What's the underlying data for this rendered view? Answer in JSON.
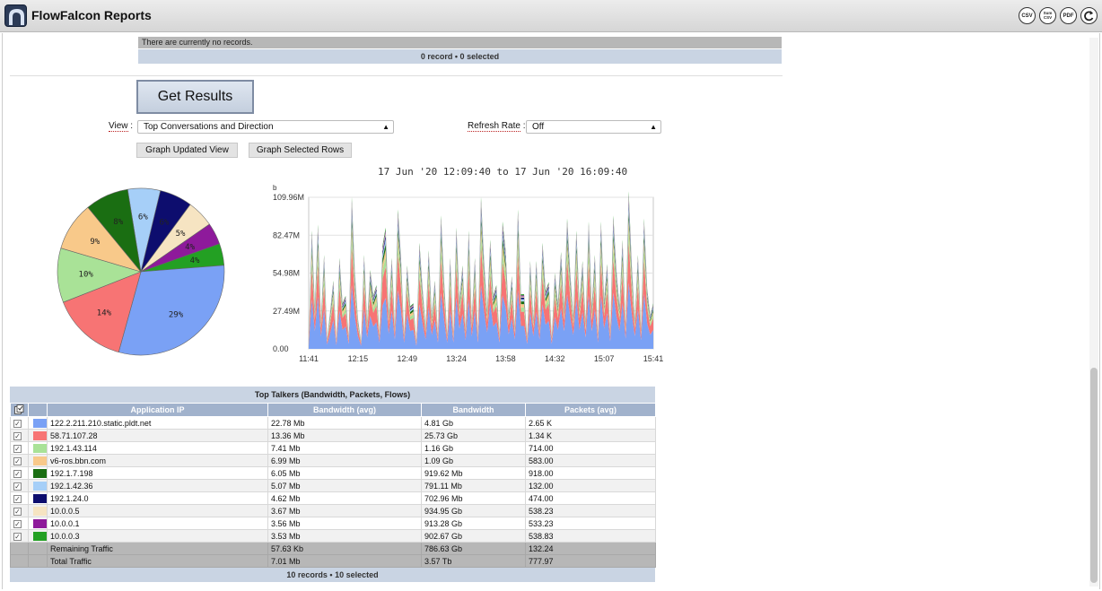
{
  "app": {
    "title": "FlowFalcon Reports",
    "toolbar_icons": [
      "CSV",
      "Sum CSV",
      "PDF",
      "back"
    ]
  },
  "records_panel": {
    "message": "There are currently no records.",
    "footer": "0 record • 0 selected"
  },
  "controls": {
    "get_results_label": "Get Results",
    "view_label": "View",
    "view_value": "Top Conversations and Direction",
    "refresh_label": "Refresh Rate",
    "refresh_value": "Off",
    "graph_updated_label": "Graph Updated View",
    "graph_selected_label": "Graph Selected Rows"
  },
  "chart_data": [
    {
      "type": "pie",
      "labels": [
        "122.2.211.210.static.pldt.net",
        "58.71.107.28",
        "192.1.43.114",
        "v6-ros.bbn.com",
        "192.1.7.198",
        "192.1.42.36",
        "192.1.24.0",
        "10.0.0.5",
        "10.0.0.1",
        "10.0.0.3"
      ],
      "values": [
        29,
        14,
        10,
        9,
        8,
        6,
        6,
        5,
        4,
        4
      ],
      "value_labels": [
        "29%",
        "14%",
        "10%",
        "9%",
        "8%",
        "6%",
        "6%",
        "5%",
        "4%",
        "4%"
      ],
      "colors": [
        "#7aa1f5",
        "#f77474",
        "#a9e297",
        "#f8c98a",
        "#1a6e12",
        "#a6cff8",
        "#0d0d6e",
        "#f6e4c2",
        "#8e1a9b",
        "#23a023"
      ]
    },
    {
      "type": "area",
      "stacked": true,
      "title": "17 Jun '20 12:09:40 to 17 Jun '20 16:09:40",
      "y_unit": "b",
      "yticks": [
        "0.00",
        "27.49M",
        "54.98M",
        "82.47M",
        "109.96M"
      ],
      "ylim": [
        0,
        109960000
      ],
      "xticks": [
        "11:41",
        "12:15",
        "12:49",
        "13:24",
        "13:58",
        "14:32",
        "15:07",
        "15:41"
      ],
      "series_colors": [
        "#7aa1f5",
        "#f77474",
        "#a9e297",
        "#f8c98a",
        "#1a6e12",
        "#a6cff8",
        "#0d0d6e",
        "#f6e4c2",
        "#8e1a9b",
        "#23a023"
      ],
      "totals": [
        5,
        78,
        28,
        82,
        20,
        62,
        7,
        25,
        45,
        6,
        60,
        30,
        35,
        8,
        100,
        50,
        20,
        5,
        62,
        18,
        52,
        35,
        42,
        10,
        68,
        80,
        24,
        60,
        15,
        92,
        60,
        10,
        55,
        28,
        30,
        5,
        70,
        40,
        15,
        65,
        22,
        45,
        10,
        88,
        45,
        10,
        60,
        10,
        80,
        32,
        55,
        14,
        78,
        20,
        60,
        10,
        100,
        58,
        26,
        72,
        35,
        42,
        10,
        84,
        65,
        23,
        48,
        15,
        92,
        36,
        36,
        8,
        58,
        20,
        58,
        15,
        70,
        38,
        44,
        8,
        50,
        30,
        64,
        28,
        86,
        50,
        22,
        78,
        30,
        58,
        18,
        84,
        28,
        62,
        10,
        84,
        32,
        56,
        12,
        88,
        52,
        28,
        72,
        16,
        104,
        55,
        20,
        62,
        14,
        86,
        40,
        22,
        30
      ]
    }
  ],
  "table": {
    "title": "Top Talkers (Bandwidth, Packets, Flows)",
    "columns": [
      "Application IP",
      "Bandwidth (avg)",
      "Bandwidth",
      "Packets (avg)"
    ],
    "rows": [
      {
        "ip": "122.2.211.210.static.pldt.net",
        "bw_avg": "22.78 Mb",
        "bw": "4.81 Gb",
        "pkts": "2.65 K",
        "color": "#7aa1f5",
        "checked": true
      },
      {
        "ip": "58.71.107.28",
        "bw_avg": "13.36 Mb",
        "bw": "25.73 Gb",
        "pkts": "1.34 K",
        "color": "#f77474",
        "checked": true
      },
      {
        "ip": "192.1.43.114",
        "bw_avg": "7.41 Mb",
        "bw": "1.16 Gb",
        "pkts": "714.00",
        "color": "#a9e297",
        "checked": true
      },
      {
        "ip": "v6-ros.bbn.com",
        "bw_avg": "6.99 Mb",
        "bw": "1.09 Gb",
        "pkts": "583.00",
        "color": "#f8c98a",
        "checked": true
      },
      {
        "ip": "192.1.7.198",
        "bw_avg": "6.05 Mb",
        "bw": "919.62 Mb",
        "pkts": "918.00",
        "color": "#1a6e12",
        "checked": true
      },
      {
        "ip": "192.1.42.36",
        "bw_avg": "5.07 Mb",
        "bw": "791.11 Mb",
        "pkts": "132.00",
        "color": "#a6cff8",
        "checked": true
      },
      {
        "ip": "192.1.24.0",
        "bw_avg": "4.62 Mb",
        "bw": "702.96 Mb",
        "pkts": "474.00",
        "color": "#0d0d6e",
        "checked": true
      },
      {
        "ip": "10.0.0.5",
        "bw_avg": "3.67 Mb",
        "bw": "934.95 Gb",
        "pkts": "538.23",
        "color": "#f6e4c2",
        "checked": true
      },
      {
        "ip": "10.0.0.1",
        "bw_avg": "3.56 Mb",
        "bw": "913.28 Gb",
        "pkts": "533.23",
        "color": "#8e1a9b",
        "checked": true
      },
      {
        "ip": "10.0.0.3",
        "bw_avg": "3.53 Mb",
        "bw": "902.67 Gb",
        "pkts": "538.83",
        "color": "#23a023",
        "checked": true
      }
    ],
    "summary_rows": [
      {
        "ip": "Remaining Traffic",
        "bw_avg": "57.63 Kb",
        "bw": "786.63 Gb",
        "pkts": "132.24"
      },
      {
        "ip": "Total Traffic",
        "bw_avg": "7.01 Mb",
        "bw": "3.57 Tb",
        "pkts": "777.97"
      }
    ],
    "footer": "10 records • 10 selected"
  }
}
